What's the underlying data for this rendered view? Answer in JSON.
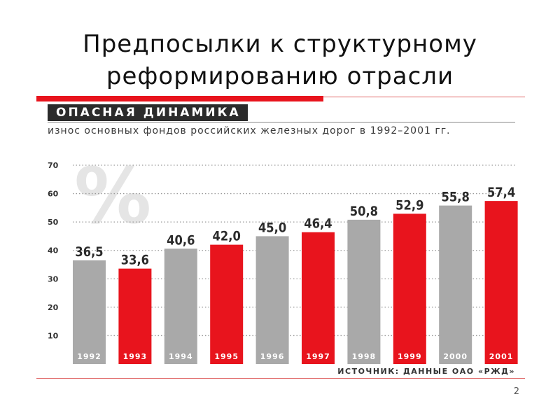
{
  "slide": {
    "title_line1": "Предпосылки к структурному",
    "title_line2": "реформированию отрасли",
    "page_number": "2"
  },
  "colors": {
    "accent_red": "#e8141d",
    "bar_gray": "#a9a9a9",
    "bar_red": "#e8141d",
    "text_dark": "#2b2b2b"
  },
  "chart_data": {
    "type": "bar",
    "title": "ОПАСНАЯ ДИНАМИКА",
    "subtitle": "износ основных фондов российских железных дорог в 1992–2001 гг.",
    "unit_symbol": "%",
    "categories": [
      "1992",
      "1993",
      "1994",
      "1995",
      "1996",
      "1997",
      "1998",
      "1999",
      "2000",
      "2001"
    ],
    "values": [
      36.5,
      33.6,
      40.6,
      42.0,
      45.0,
      46.4,
      50.8,
      52.9,
      55.8,
      57.4
    ],
    "value_labels": [
      "36,5",
      "33,6",
      "40,6",
      "42,0",
      "45,0",
      "46,4",
      "50,8",
      "52,9",
      "55,8",
      "57,4"
    ],
    "bar_colors": [
      "gray",
      "red",
      "gray",
      "red",
      "gray",
      "red",
      "gray",
      "red",
      "gray",
      "red"
    ],
    "y_ticks": [
      10,
      20,
      30,
      40,
      50,
      60,
      70
    ],
    "ylim": [
      0,
      70
    ],
    "grid": true,
    "grid_style": "dotted",
    "legend": "none",
    "source": "ИСТОЧНИК: ДАННЫЕ ОАО «РЖД»"
  }
}
